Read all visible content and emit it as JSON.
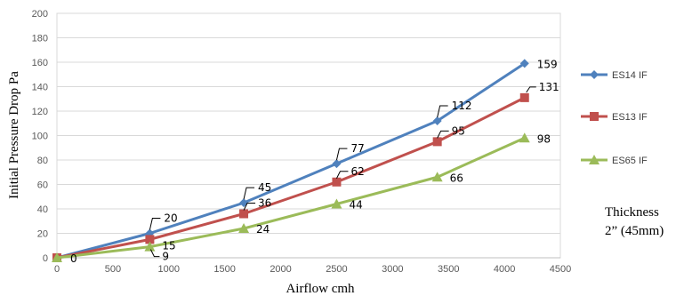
{
  "chart_data": {
    "type": "line",
    "xlabel": "Airflow cmh",
    "ylabel": "Initial Pressure Drop Pa",
    "xlim": [
      0,
      4500
    ],
    "ylim": [
      0,
      200
    ],
    "xticks": [
      0,
      500,
      1000,
      1500,
      2000,
      2500,
      3000,
      3500,
      4000,
      4500
    ],
    "yticks": [
      0,
      20,
      40,
      60,
      80,
      100,
      120,
      140,
      160,
      180,
      200
    ],
    "grid": true,
    "legend_position": "right",
    "series": [
      {
        "name": "ES14 IF",
        "color": "#4f81bd",
        "marker": "diamond",
        "x": [
          0,
          830,
          1670,
          2500,
          3400,
          4180
        ],
        "values": [
          0,
          20,
          45,
          77,
          112,
          159
        ]
      },
      {
        "name": "ES13 IF",
        "color": "#c0504d",
        "marker": "square",
        "x": [
          0,
          830,
          1670,
          2500,
          3400,
          4180
        ],
        "values": [
          0,
          15,
          36,
          62,
          95,
          131
        ]
      },
      {
        "name": "ES65 IF",
        "color": "#9bbb59",
        "marker": "triangle",
        "x": [
          0,
          830,
          1670,
          2500,
          3400,
          4180
        ],
        "values": [
          0,
          9,
          24,
          44,
          66,
          98
        ]
      }
    ],
    "annotation_lines": [
      "Thickness",
      "2” (45mm)"
    ]
  }
}
